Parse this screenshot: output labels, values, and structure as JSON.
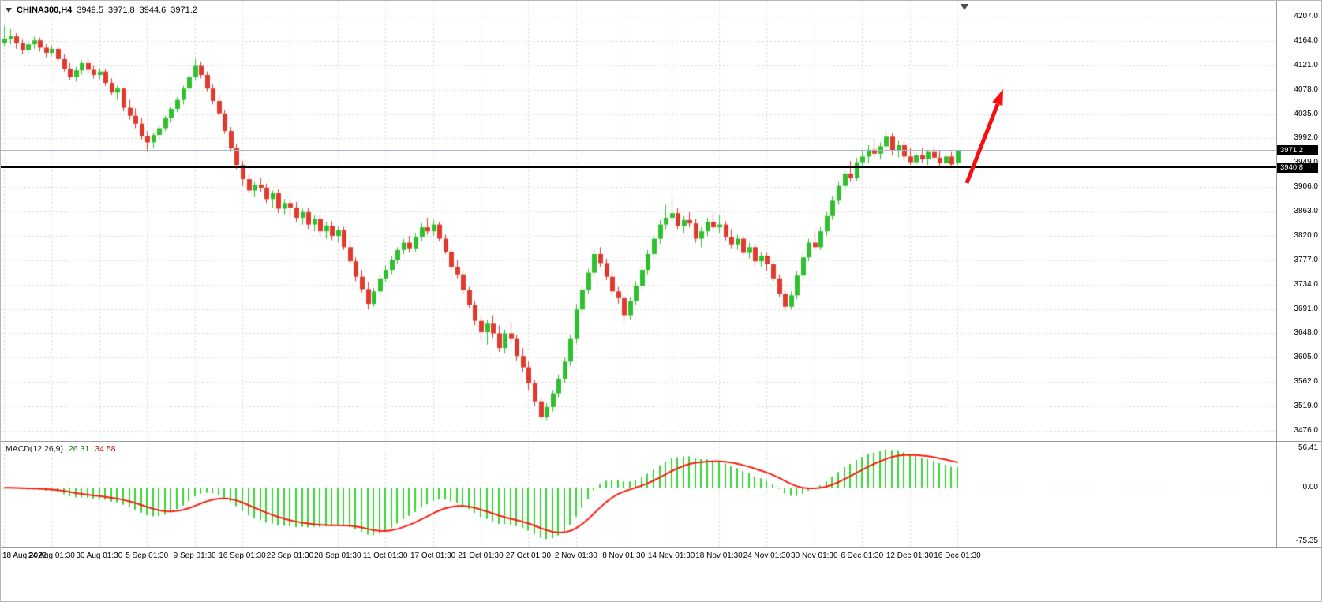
{
  "header": {
    "symbol_period": "CHINA300,H4",
    "open": "3949.5",
    "high": "3971.8",
    "low": "3944.6",
    "close": "3971.2"
  },
  "price_tags": {
    "bid": "3971.2",
    "hline_value": "3940.8"
  },
  "macd_panel": {
    "label": "MACD(12,26,9)",
    "macd_value": "26.31",
    "signal_value": "34.58"
  },
  "colors": {
    "bull": "#2fbf2f",
    "bear": "#e03a2e",
    "macd_hist": "#35d435",
    "macd_signal": "#ff1a0d",
    "grid": "#d9d9d9",
    "bid_line": "#aab7c6",
    "hline": "#000000",
    "arrow": "#f50f0f",
    "tag_bg": "#000000",
    "tag_text": "#ffffff"
  },
  "chart_data": {
    "type": "candlestick",
    "symbol": "CHINA300",
    "timeframe": "H4",
    "title": "CHINA300,H4 3949.5 3971.8 3944.6 3971.2",
    "ylim": [
      3476.0,
      4207.0
    ],
    "y_tick_step": 43.0,
    "y_tick_labels": [
      "4207.0",
      "4164.0",
      "4121.0",
      "4078.0",
      "4035.0",
      "3992.0",
      "3949.0",
      "3906.0",
      "3863.0",
      "3820.0",
      "3777.0",
      "3734.0",
      "3691.0",
      "3648.0",
      "3605.0",
      "3562.0",
      "3519.0",
      "3476.0"
    ],
    "x_tick_labels": [
      "18 Aug 2022",
      "24 Aug 01:30",
      "30 Aug 01:30",
      "5 Sep 01:30",
      "9 Sep 01:30",
      "16 Sep 01:30",
      "22 Sep 01:30",
      "28 Sep 01:30",
      "11 Oct 01:30",
      "17 Oct 01:30",
      "21 Oct 01:30",
      "27 Oct 01:30",
      "2 Nov 01:30",
      "8 Nov 01:30",
      "14 Nov 01:30",
      "18 Nov 01:30",
      "24 Nov 01:30",
      "30 Nov 01:30",
      "6 Dec 01:30",
      "12 Dec 01:30",
      "16 Dec 01:30"
    ],
    "bars_per_x_tick": 8,
    "candles": [
      [
        4160,
        4190,
        4155,
        4168
      ],
      [
        4168,
        4185,
        4158,
        4172
      ],
      [
        4172,
        4178,
        4150,
        4160
      ],
      [
        4160,
        4166,
        4140,
        4148
      ],
      [
        4148,
        4163,
        4142,
        4158
      ],
      [
        4158,
        4172,
        4150,
        4165
      ],
      [
        4165,
        4170,
        4145,
        4152
      ],
      [
        4152,
        4158,
        4135,
        4143
      ],
      [
        4143,
        4156,
        4138,
        4150
      ],
      [
        4150,
        4155,
        4128,
        4132
      ],
      [
        4132,
        4140,
        4110,
        4115
      ],
      [
        4115,
        4125,
        4095,
        4100
      ],
      [
        4100,
        4118,
        4092,
        4112
      ],
      [
        4112,
        4130,
        4105,
        4125
      ],
      [
        4125,
        4132,
        4108,
        4113
      ],
      [
        4113,
        4120,
        4098,
        4104
      ],
      [
        4104,
        4116,
        4096,
        4110
      ],
      [
        4110,
        4114,
        4085,
        4090
      ],
      [
        4090,
        4098,
        4068,
        4073
      ],
      [
        4073,
        4085,
        4060,
        4080
      ],
      [
        4080,
        4082,
        4040,
        4046
      ],
      [
        4046,
        4060,
        4025,
        4032
      ],
      [
        4032,
        4045,
        4010,
        4018
      ],
      [
        4018,
        4028,
        3990,
        3996
      ],
      [
        3996,
        4005,
        3968,
        3985
      ],
      [
        3985,
        4002,
        3975,
        3998
      ],
      [
        3998,
        4015,
        3990,
        4010
      ],
      [
        4010,
        4032,
        4005,
        4028
      ],
      [
        4028,
        4048,
        4020,
        4044
      ],
      [
        4044,
        4065,
        4038,
        4060
      ],
      [
        4060,
        4085,
        4052,
        4080
      ],
      [
        4080,
        4105,
        4072,
        4100
      ],
      [
        4100,
        4132,
        4094,
        4120
      ],
      [
        4120,
        4128,
        4098,
        4104
      ],
      [
        4104,
        4110,
        4075,
        4080
      ],
      [
        4080,
        4088,
        4052,
        4058
      ],
      [
        4058,
        4070,
        4030,
        4036
      ],
      [
        4036,
        4042,
        4000,
        4005
      ],
      [
        4005,
        4012,
        3968,
        3975
      ],
      [
        3975,
        3982,
        3938,
        3945
      ],
      [
        3945,
        3952,
        3908,
        3920
      ],
      [
        3920,
        3930,
        3895,
        3900
      ],
      [
        3900,
        3915,
        3888,
        3910
      ],
      [
        3910,
        3922,
        3898,
        3905
      ],
      [
        3905,
        3912,
        3878,
        3885
      ],
      [
        3885,
        3900,
        3870,
        3895
      ],
      [
        3895,
        3902,
        3860,
        3868
      ],
      [
        3868,
        3885,
        3858,
        3878
      ],
      [
        3878,
        3884,
        3855,
        3870
      ],
      [
        3870,
        3880,
        3845,
        3852
      ],
      [
        3852,
        3868,
        3840,
        3862
      ],
      [
        3862,
        3870,
        3832,
        3840
      ],
      [
        3840,
        3856,
        3828,
        3850
      ],
      [
        3850,
        3858,
        3820,
        3828
      ],
      [
        3828,
        3845,
        3815,
        3838
      ],
      [
        3838,
        3846,
        3812,
        3820
      ],
      [
        3820,
        3838,
        3808,
        3830
      ],
      [
        3830,
        3836,
        3795,
        3800
      ],
      [
        3800,
        3812,
        3770,
        3775
      ],
      [
        3775,
        3782,
        3740,
        3748
      ],
      [
        3748,
        3760,
        3720,
        3726
      ],
      [
        3726,
        3738,
        3690,
        3700
      ],
      [
        3700,
        3728,
        3695,
        3722
      ],
      [
        3722,
        3750,
        3715,
        3745
      ],
      [
        3745,
        3768,
        3738,
        3760
      ],
      [
        3760,
        3785,
        3752,
        3778
      ],
      [
        3778,
        3800,
        3770,
        3795
      ],
      [
        3795,
        3815,
        3788,
        3808
      ],
      [
        3808,
        3820,
        3790,
        3798
      ],
      [
        3798,
        3825,
        3792,
        3818
      ],
      [
        3818,
        3842,
        3810,
        3835
      ],
      [
        3835,
        3852,
        3822,
        3828
      ],
      [
        3828,
        3848,
        3820,
        3840
      ],
      [
        3840,
        3845,
        3810,
        3815
      ],
      [
        3815,
        3822,
        3788,
        3792
      ],
      [
        3792,
        3800,
        3760,
        3765
      ],
      [
        3765,
        3778,
        3745,
        3752
      ],
      [
        3752,
        3758,
        3718,
        3724
      ],
      [
        3724,
        3730,
        3692,
        3698
      ],
      [
        3698,
        3705,
        3662,
        3670
      ],
      [
        3670,
        3678,
        3635,
        3650
      ],
      [
        3650,
        3672,
        3628,
        3665
      ],
      [
        3665,
        3680,
        3640,
        3648
      ],
      [
        3648,
        3662,
        3615,
        3622
      ],
      [
        3622,
        3655,
        3612,
        3648
      ],
      [
        3648,
        3668,
        3630,
        3638
      ],
      [
        3638,
        3645,
        3600,
        3608
      ],
      [
        3608,
        3622,
        3580,
        3588
      ],
      [
        3588,
        3598,
        3548,
        3560
      ],
      [
        3560,
        3566,
        3520,
        3528
      ],
      [
        3528,
        3535,
        3494,
        3500
      ],
      [
        3500,
        3525,
        3495,
        3518
      ],
      [
        3518,
        3548,
        3510,
        3542
      ],
      [
        3542,
        3575,
        3535,
        3568
      ],
      [
        3568,
        3605,
        3560,
        3598
      ],
      [
        3598,
        3645,
        3590,
        3638
      ],
      [
        3638,
        3700,
        3630,
        3690
      ],
      [
        3690,
        3732,
        3682,
        3725
      ],
      [
        3725,
        3762,
        3718,
        3755
      ],
      [
        3755,
        3795,
        3748,
        3788
      ],
      [
        3788,
        3800,
        3765,
        3772
      ],
      [
        3772,
        3780,
        3742,
        3748
      ],
      [
        3748,
        3758,
        3715,
        3722
      ],
      [
        3722,
        3730,
        3700,
        3710
      ],
      [
        3710,
        3716,
        3668,
        3680
      ],
      [
        3680,
        3712,
        3672,
        3705
      ],
      [
        3705,
        3740,
        3698,
        3732
      ],
      [
        3732,
        3768,
        3725,
        3760
      ],
      [
        3760,
        3795,
        3752,
        3788
      ],
      [
        3788,
        3822,
        3780,
        3815
      ],
      [
        3815,
        3848,
        3806,
        3840
      ],
      [
        3840,
        3875,
        3832,
        3852
      ],
      [
        3852,
        3888,
        3845,
        3860
      ],
      [
        3860,
        3870,
        3832,
        3838
      ],
      [
        3838,
        3855,
        3825,
        3848
      ],
      [
        3848,
        3862,
        3835,
        3842
      ],
      [
        3842,
        3850,
        3808,
        3815
      ],
      [
        3815,
        3835,
        3800,
        3828
      ],
      [
        3828,
        3852,
        3820,
        3845
      ],
      [
        3845,
        3860,
        3828,
        3835
      ],
      [
        3835,
        3856,
        3825,
        3840
      ],
      [
        3840,
        3846,
        3812,
        3818
      ],
      [
        3818,
        3832,
        3798,
        3805
      ],
      [
        3805,
        3822,
        3795,
        3815
      ],
      [
        3815,
        3820,
        3785,
        3790
      ],
      [
        3790,
        3808,
        3780,
        3800
      ],
      [
        3800,
        3806,
        3768,
        3775
      ],
      [
        3775,
        3792,
        3765,
        3785
      ],
      [
        3785,
        3790,
        3758,
        3770
      ],
      [
        3770,
        3776,
        3738,
        3745
      ],
      [
        3745,
        3752,
        3712,
        3718
      ],
      [
        3718,
        3725,
        3688,
        3695
      ],
      [
        3695,
        3722,
        3690,
        3715
      ],
      [
        3715,
        3758,
        3708,
        3750
      ],
      [
        3750,
        3790,
        3742,
        3782
      ],
      [
        3782,
        3815,
        3775,
        3808
      ],
      [
        3808,
        3828,
        3798,
        3800
      ],
      [
        3800,
        3835,
        3795,
        3828
      ],
      [
        3828,
        3862,
        3820,
        3855
      ],
      [
        3855,
        3890,
        3848,
        3882
      ],
      [
        3882,
        3915,
        3875,
        3908
      ],
      [
        3908,
        3938,
        3900,
        3930
      ],
      [
        3930,
        3952,
        3915,
        3922
      ],
      [
        3922,
        3958,
        3916,
        3950
      ],
      [
        3950,
        3972,
        3940,
        3960
      ],
      [
        3960,
        3980,
        3948,
        3972
      ],
      [
        3972,
        3992,
        3958,
        3965
      ],
      [
        3965,
        3985,
        3955,
        3978
      ],
      [
        3978,
        4008,
        3970,
        3995
      ],
      [
        3995,
        4002,
        3962,
        3970
      ],
      [
        3970,
        3988,
        3958,
        3980
      ],
      [
        3980,
        3986,
        3952,
        3960
      ],
      [
        3960,
        3976,
        3945,
        3950
      ],
      [
        3950,
        3968,
        3940,
        3962
      ],
      [
        3962,
        3975,
        3948,
        3955
      ],
      [
        3955,
        3972,
        3945,
        3968
      ],
      [
        3968,
        3978,
        3952,
        3958
      ],
      [
        3958,
        3970,
        3942,
        3948
      ],
      [
        3948,
        3965,
        3938,
        3960
      ],
      [
        3960,
        3968,
        3940,
        3946
      ],
      [
        3949.5,
        3971.8,
        3944.6,
        3971.2
      ]
    ],
    "indicator": {
      "name": "MACD",
      "fast": 12,
      "slow": 26,
      "signal": 9,
      "current_macd": 26.31,
      "current_signal": 34.58,
      "axis_tick_labels": [
        "56.41",
        "0.00",
        "-75.35"
      ],
      "axis_range": [
        -75.35,
        56.41
      ]
    },
    "annotations": {
      "horizontal_line_price": 3940.8,
      "current_bid_price": 3971.2,
      "arrow": {
        "direction": "up-right",
        "color": "red",
        "near_bar_index": 160,
        "from_price": 3915,
        "to_price": 4090
      }
    }
  }
}
